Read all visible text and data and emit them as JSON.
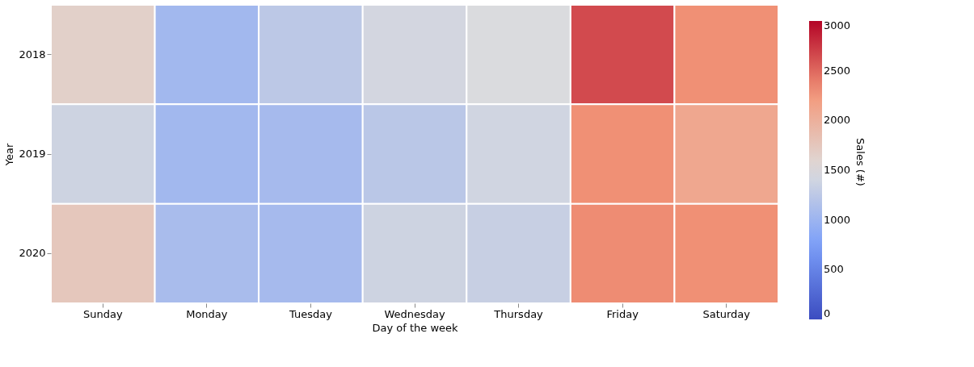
{
  "chart_data": {
    "type": "heatmap",
    "xlabel": "Day of the week",
    "ylabel": "Year",
    "clabel": "Sales (#)",
    "categories": [
      "Sunday",
      "Monday",
      "Tuesday",
      "Wednesday",
      "Thursday",
      "Friday",
      "Saturday"
    ],
    "y_categories": [
      "2018",
      "2019",
      "2020"
    ],
    "cells": [
      [
        1650,
        1050,
        1250,
        1420,
        1480,
        2650,
        2300
      ],
      [
        1380,
        1050,
        1080,
        1230,
        1400,
        2300,
        2100
      ],
      [
        1750,
        1100,
        1080,
        1380,
        1330,
        2320,
        2300
      ]
    ],
    "clim": [
      0,
      3000
    ],
    "cticks": [
      0,
      500,
      1000,
      1500,
      2000,
      2500,
      3000
    ]
  }
}
